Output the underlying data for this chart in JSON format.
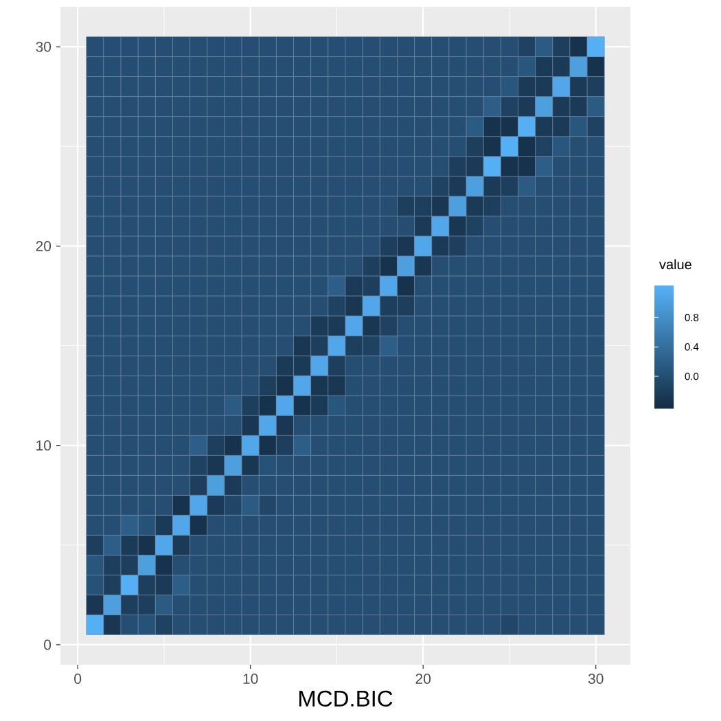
{
  "chart_data": {
    "type": "heatmap",
    "xlabel": "MCD.BIC",
    "clabel": "value",
    "x": [
      1,
      2,
      3,
      4,
      5,
      6,
      7,
      8,
      9,
      10,
      11,
      12,
      13,
      14,
      15,
      16,
      17,
      18,
      19,
      20,
      21,
      22,
      23,
      24,
      25,
      26,
      27,
      28,
      29,
      30
    ],
    "y": [
      30,
      29,
      28,
      27,
      26,
      25,
      24,
      23,
      22,
      21,
      20,
      19,
      18,
      17,
      16,
      15,
      14,
      13,
      12,
      11,
      10,
      9,
      8,
      7,
      6,
      5,
      4,
      3,
      2,
      1
    ],
    "xlim": [
      -1,
      32
    ],
    "ylim": [
      -1,
      32
    ],
    "xticks": [
      0,
      10,
      20,
      30
    ],
    "yticks": [
      0,
      10,
      20,
      30
    ],
    "clim": [
      -0.44,
      1.24
    ],
    "cticks": [
      {
        "value": 0,
        "label": "0.0"
      },
      0.4,
      0.8
    ],
    "grid": true,
    "cells": [
      [
        0,
        0,
        0,
        0,
        0,
        0,
        0,
        0,
        0,
        0,
        0,
        0,
        0,
        0,
        0,
        0,
        0,
        0,
        0,
        0,
        0,
        0,
        0,
        0,
        0,
        -0.15,
        0.15,
        -0.2,
        -0.35,
        1.2
      ],
      [
        0,
        0,
        0,
        0,
        0,
        0,
        0,
        0,
        0,
        0,
        0,
        0,
        0,
        0,
        0,
        0,
        0,
        0,
        0,
        0,
        0,
        0,
        0,
        0,
        0,
        0.1,
        -0.25,
        -0.25,
        1.0,
        -0.35
      ],
      [
        0,
        0,
        0,
        0,
        0,
        0,
        0,
        0,
        0,
        0,
        0,
        0,
        0,
        0,
        0,
        0,
        0,
        0,
        0,
        0,
        0,
        0,
        0,
        0,
        0.1,
        -0.25,
        -0.25,
        1.1,
        -0.25,
        -0.2
      ],
      [
        0,
        0,
        0,
        0,
        0,
        0,
        0,
        0,
        0,
        0,
        0,
        0,
        0,
        0,
        0,
        0,
        0,
        0,
        0,
        0,
        0,
        0,
        0,
        0.2,
        -0.15,
        -0.25,
        1.0,
        -0.25,
        -0.25,
        0.15
      ],
      [
        0,
        0,
        0,
        0,
        0,
        0,
        0,
        0,
        0,
        0,
        0,
        0,
        0,
        0,
        0,
        0,
        0,
        0,
        0,
        0,
        0,
        0,
        0.15,
        -0.35,
        -0.35,
        1.2,
        -0.25,
        -0.25,
        0.1,
        -0.15
      ],
      [
        0,
        0,
        0,
        0,
        0,
        0,
        0,
        0,
        0,
        0,
        0,
        0,
        0,
        0,
        0,
        0,
        0,
        0,
        0,
        0,
        0,
        0,
        -0.2,
        -0.35,
        1.2,
        -0.35,
        -0.15,
        0.1,
        0,
        0
      ],
      [
        0,
        0,
        0,
        0,
        0,
        0,
        0,
        0,
        0,
        0,
        0,
        0,
        0,
        0,
        0,
        0,
        0,
        0,
        0,
        0,
        0,
        -0.2,
        -0.25,
        1.2,
        -0.35,
        -0.35,
        0.2,
        0,
        0,
        0
      ],
      [
        0,
        0,
        0,
        0,
        0,
        0,
        0,
        0,
        0,
        0,
        0,
        0,
        0,
        0,
        0,
        0,
        0,
        0,
        0,
        0,
        -0.15,
        -0.25,
        1.0,
        -0.25,
        -0.2,
        0.15,
        0,
        0,
        0,
        0
      ],
      [
        0,
        0,
        0,
        0,
        0,
        0,
        0,
        0,
        0,
        0,
        0,
        0,
        0,
        0,
        0,
        0,
        0,
        0,
        -0.2,
        -0.2,
        -0.3,
        1.0,
        -0.25,
        -0.2,
        0,
        0,
        0,
        0,
        0,
        0
      ],
      [
        0,
        0,
        0,
        0,
        0,
        0,
        0,
        0,
        0,
        0,
        0,
        0,
        0,
        0,
        0,
        0,
        0,
        0,
        0,
        -0.25,
        1.1,
        -0.3,
        -0.15,
        0,
        0,
        0,
        0,
        0,
        0,
        0
      ],
      [
        0,
        0,
        0,
        0,
        0,
        0,
        0,
        0,
        0,
        0,
        0,
        0,
        0,
        0,
        0,
        0,
        0,
        -0.2,
        -0.3,
        1.1,
        -0.25,
        -0.2,
        0,
        0,
        0,
        0,
        0,
        0,
        0,
        0
      ],
      [
        0,
        0,
        0,
        0,
        0,
        0,
        0,
        0,
        0,
        0,
        0,
        0,
        0,
        0,
        0,
        0,
        -0.2,
        -0.35,
        1.0,
        -0.3,
        0,
        0,
        0,
        0,
        0,
        0,
        0,
        0,
        0,
        0
      ],
      [
        0,
        0,
        0,
        0,
        0,
        0,
        0,
        0,
        0,
        0,
        0,
        0,
        0,
        0,
        0.2,
        -0.25,
        -0.2,
        1.1,
        -0.35,
        0,
        0,
        0,
        0,
        0,
        0,
        0,
        0,
        0,
        0,
        0
      ],
      [
        0,
        0,
        0,
        0,
        0,
        0,
        0,
        0,
        0,
        0,
        0,
        0,
        0,
        0,
        -0.15,
        -0.3,
        1.1,
        -0.2,
        -0.2,
        0,
        0,
        0,
        0,
        0,
        0,
        0,
        0,
        0,
        0,
        0
      ],
      [
        0,
        0,
        0,
        0,
        0,
        0,
        0,
        0,
        0,
        0,
        0,
        0,
        0,
        -0.25,
        -0.25,
        1.1,
        -0.3,
        -0.15,
        0,
        0,
        0,
        0,
        0,
        0,
        0,
        0,
        0,
        0,
        0,
        0
      ],
      [
        0,
        0,
        0,
        0,
        0,
        0,
        0,
        0,
        0,
        0,
        0,
        0,
        -0.3,
        -0.2,
        1.1,
        -0.2,
        -0.15,
        0.2,
        0,
        0,
        0,
        0,
        0,
        0,
        0,
        0,
        0,
        0,
        0,
        0
      ],
      [
        0,
        0,
        0,
        0,
        0,
        0,
        0,
        0,
        0,
        0,
        0,
        -0.25,
        -0.25,
        1.1,
        -0.2,
        0,
        0,
        0,
        0,
        0,
        0,
        0,
        0,
        0,
        0,
        0,
        0,
        0,
        0,
        0
      ],
      [
        0,
        0,
        0,
        0,
        0,
        0,
        0,
        0,
        0,
        0,
        -0.2,
        -0.35,
        1.1,
        -0.3,
        -0.3,
        0,
        0,
        0,
        0,
        0,
        0,
        0,
        0,
        0,
        0,
        0,
        0,
        0,
        0,
        0
      ],
      [
        0,
        0,
        0,
        0,
        0,
        0,
        0,
        0,
        0.15,
        -0.2,
        -0.35,
        1.1,
        -0.35,
        -0.25,
        0.1,
        0,
        0,
        0,
        0,
        0,
        0,
        0,
        0,
        0,
        0,
        0,
        0,
        0,
        0,
        0
      ],
      [
        0,
        0,
        0,
        0,
        0,
        0,
        0,
        0,
        0,
        -0.3,
        1.1,
        -0.3,
        0,
        0,
        0,
        0,
        0,
        0,
        0,
        0,
        0,
        0,
        0,
        0,
        0,
        0,
        0,
        0,
        0,
        0
      ],
      [
        0,
        0,
        0,
        0,
        0,
        0,
        0.2,
        -0.2,
        -0.35,
        1.1,
        -0.35,
        -0.2,
        0.2,
        0,
        0,
        0,
        0,
        0,
        0,
        0,
        0,
        0,
        0,
        0,
        0,
        0,
        0,
        0,
        0,
        0
      ],
      [
        0,
        0,
        0,
        0,
        0,
        0,
        -0.15,
        -0.3,
        1.0,
        -0.3,
        0.05,
        0,
        0,
        0,
        0,
        0,
        0,
        0,
        0,
        0,
        0,
        0,
        0,
        0,
        0,
        0,
        0,
        0,
        0,
        0
      ],
      [
        0,
        0,
        0,
        0,
        0,
        0,
        -0.2,
        1.0,
        -0.25,
        0,
        0,
        0,
        0,
        0,
        0,
        0,
        0,
        0,
        0,
        0,
        0,
        0,
        0,
        0,
        0,
        0,
        0,
        0,
        0,
        0
      ],
      [
        0,
        0,
        0,
        0,
        0,
        -0.35,
        1.1,
        -0.25,
        -0.1,
        0.15,
        -0.1,
        0,
        0,
        0,
        0,
        0,
        0,
        0,
        0,
        0,
        0,
        0,
        0,
        0,
        0,
        0,
        0,
        0,
        0,
        0
      ],
      [
        0,
        0,
        0.2,
        0.05,
        -0.25,
        1.1,
        -0.35,
        0,
        0,
        0,
        0,
        0,
        0,
        0,
        0,
        0,
        0,
        0,
        0,
        0,
        0,
        0,
        0,
        0,
        0,
        0,
        0,
        0,
        0,
        0
      ],
      [
        -0.2,
        0.2,
        -0.25,
        -0.35,
        1.1,
        -0.25,
        0,
        0,
        0,
        0,
        0,
        0,
        0,
        0,
        0,
        0,
        0,
        0,
        0,
        0,
        0,
        0,
        0,
        0,
        0,
        0,
        0,
        0,
        0,
        0
      ],
      [
        0.1,
        -0.2,
        -0.2,
        1.0,
        -0.35,
        0,
        0,
        0,
        0,
        0,
        0,
        0,
        0,
        0,
        0,
        0,
        0,
        0,
        0,
        0,
        0,
        0,
        0,
        0,
        0,
        0,
        0,
        0,
        0,
        0
      ],
      [
        0.05,
        -0.2,
        1.2,
        -0.2,
        -0.25,
        0.2,
        0,
        0,
        0,
        0,
        0,
        0,
        0,
        0,
        0,
        0,
        0,
        0,
        0,
        0,
        0,
        0,
        0,
        0,
        0,
        0,
        0,
        0,
        0,
        0
      ],
      [
        -0.3,
        1.0,
        -0.2,
        -0.2,
        0.15,
        0,
        0,
        0,
        0,
        0,
        0,
        0,
        0,
        0,
        0,
        0,
        0,
        0,
        0,
        0,
        0,
        0,
        0,
        0,
        0,
        0,
        0,
        0,
        0,
        0
      ],
      [
        1.2,
        -0.3,
        0,
        0.05,
        -0.15,
        0,
        0,
        0,
        0,
        0,
        0,
        0,
        0,
        0,
        0,
        0,
        0,
        0,
        0,
        0,
        0,
        0,
        0,
        0,
        -0.1,
        0,
        0,
        0,
        0,
        0
      ]
    ]
  }
}
